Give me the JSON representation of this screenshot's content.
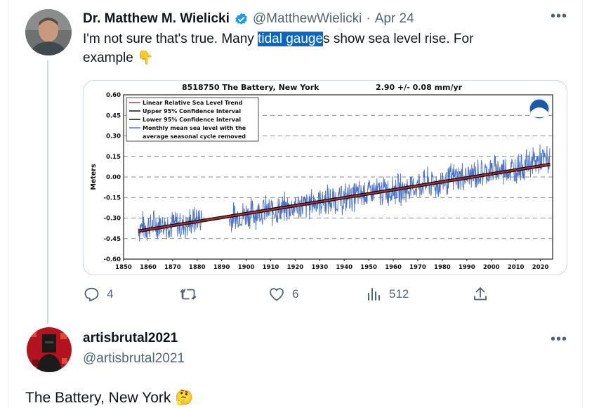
{
  "tweet1": {
    "author_name": "Dr. Matthew M. Wielicki",
    "handle": "@MatthewWielicki",
    "separator": "·",
    "date": "Apr 24",
    "text_before": "I'm not sure that's true.  Many ",
    "text_highlight": "tidal gauge",
    "text_after": "s show sea level rise. For",
    "text_line2": "example",
    "emoji": "👇",
    "more_icon": "more-icon",
    "actions": {
      "replies": "4",
      "retweets": "",
      "likes": "6",
      "views": "512"
    }
  },
  "tweet2": {
    "author_name": "artisbrutal2021",
    "handle": "@artisbrutal2021",
    "text": "The Battery, New York",
    "emoji": "🤔"
  },
  "chart_data": {
    "type": "line",
    "title": "8518750 The Battery, New York",
    "trend_label": "2.90 +/-  0.08 mm/yr",
    "ylabel": "Meters",
    "xlabel": "",
    "xlim": [
      1850,
      2025
    ],
    "ylim": [
      -0.6,
      0.6
    ],
    "x_ticks": [
      "1850",
      "1860",
      "1870",
      "1880",
      "1890",
      "1900",
      "1910",
      "1920",
      "1930",
      "1940",
      "1950",
      "1960",
      "1970",
      "1980",
      "1990",
      "2000",
      "2010",
      "2020"
    ],
    "y_ticks": [
      "0.60",
      "0.45",
      "0.30",
      "0.15",
      "0.00",
      "-0.15",
      "-0.30",
      "-0.45",
      "-0.60"
    ],
    "legend": [
      "Linear Relative Sea Level Trend",
      "Upper 95% Confidence Interval",
      "Lower 95% Confidence Interval",
      "Monthly mean sea level with the",
      "average seasonal cycle removed"
    ],
    "legend_placement": "top-left",
    "grid": "dashed horizontal",
    "series": [
      {
        "name": "Linear Relative Sea Level Trend",
        "x": [
          1856,
          2024
        ],
        "y": [
          -0.395,
          0.092
        ]
      },
      {
        "name": "Monthly mean sea level with the average seasonal cycle removed",
        "x": [
          1856,
          1862,
          1868,
          1874,
          1880,
          1893,
          1900,
          1906,
          1912,
          1918,
          1924,
          1930,
          1936,
          1942,
          1948,
          1954,
          1960,
          1966,
          1972,
          1978,
          1984,
          1990,
          1996,
          2002,
          2008,
          2014,
          2020,
          2024
        ],
        "y": [
          -0.37,
          -0.35,
          -0.34,
          -0.36,
          -0.31,
          -0.31,
          -0.27,
          -0.25,
          -0.25,
          -0.22,
          -0.21,
          -0.17,
          -0.17,
          -0.15,
          -0.12,
          -0.11,
          -0.09,
          -0.09,
          -0.05,
          -0.05,
          -0.01,
          0.0,
          0.03,
          0.05,
          0.05,
          0.09,
          0.12,
          0.12
        ]
      }
    ],
    "colors": {
      "trend": "#c62828",
      "monthly": "#4a72c8",
      "ci": "#000000"
    }
  }
}
